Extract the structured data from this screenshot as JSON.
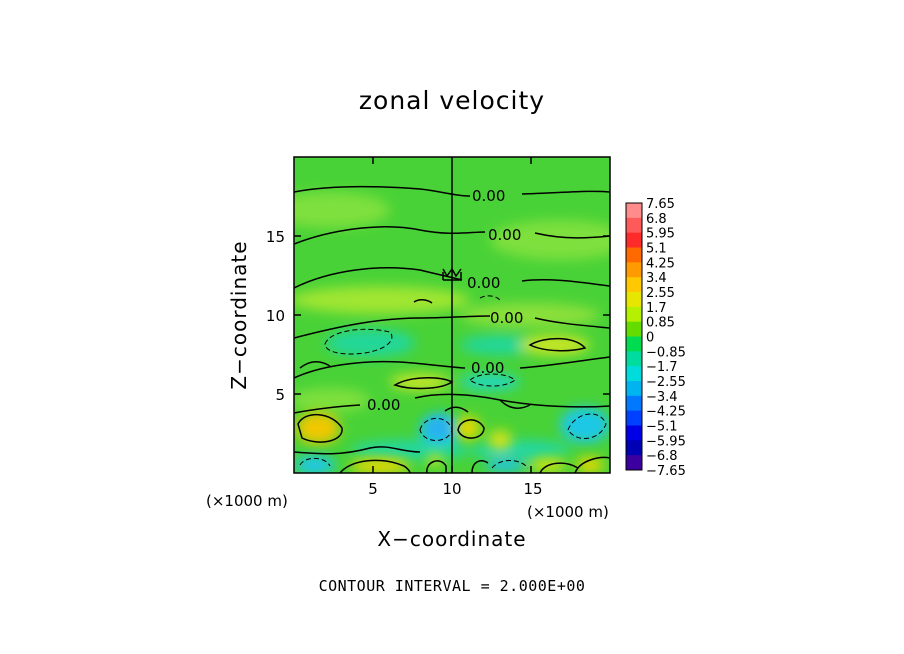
{
  "chart_data": {
    "type": "contour",
    "title": "zonal velocity",
    "xlabel": "X−coordinate",
    "ylabel": "Z−coordinate",
    "xunit": "(×1000 m)",
    "yunit": "(×1000 m)",
    "xlim": [
      0,
      20
    ],
    "ylim": [
      0,
      20
    ],
    "xticks": [
      5,
      10,
      15
    ],
    "yticks": [
      5,
      10,
      15
    ],
    "contour_labels": [
      "0.00",
      "0.00",
      "0.00",
      "0.00",
      "0.00",
      "0.00"
    ],
    "colorbar": {
      "levels": [
        "7.65",
        "6.8",
        "5.95",
        "5.1",
        "4.25",
        "3.4",
        "2.55",
        "1.7",
        "0.85",
        "0",
        "−0.85",
        "−1.7",
        "−2.55",
        "−3.4",
        "−4.25",
        "−5.1",
        "−5.95",
        "−6.8",
        "−7.65"
      ],
      "colors": [
        "#ff8c8c",
        "#ff5a5a",
        "#ff2a2a",
        "#ff6a00",
        "#ff9a00",
        "#ffc800",
        "#e6e600",
        "#b4f000",
        "#64dc00",
        "#00dc50",
        "#00dca0",
        "#00dcdc",
        "#00b4f0",
        "#0078ff",
        "#0040ff",
        "#0000e6",
        "#0000b4",
        "#3c00a0"
      ]
    },
    "footer": "CONTOUR INTERVAL = 2.000E+00"
  }
}
